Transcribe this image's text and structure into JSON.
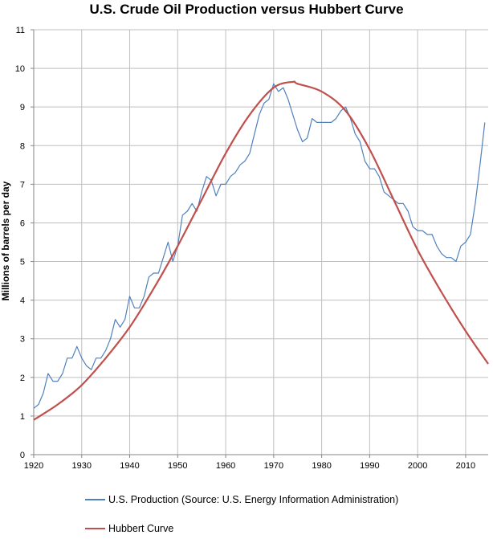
{
  "chart_data": {
    "type": "line",
    "title": "U.S. Crude Oil Production versus Hubbert Curve",
    "xlabel": "",
    "ylabel": "Millions of barrels per day",
    "xlim": [
      1920,
      2014.7
    ],
    "ylim": [
      0,
      11
    ],
    "x_ticks": [
      1920,
      1930,
      1940,
      1950,
      1960,
      1970,
      1980,
      1990,
      2000,
      2010
    ],
    "y_ticks": [
      0,
      1,
      2,
      3,
      4,
      5,
      6,
      7,
      8,
      9,
      10,
      11
    ],
    "grid": true,
    "legend_position": "bottom",
    "series": [
      {
        "name": "U.S. Production (Source: U.S. Energy Information Administration)",
        "color": "#4f81bd",
        "x": [
          1920,
          1921,
          1922,
          1923,
          1924,
          1925,
          1926,
          1927,
          1928,
          1929,
          1930,
          1931,
          1932,
          1933,
          1934,
          1935,
          1936,
          1937,
          1938,
          1939,
          1940,
          1941,
          1942,
          1943,
          1944,
          1945,
          1946,
          1947,
          1948,
          1949,
          1950,
          1951,
          1952,
          1953,
          1954,
          1955,
          1956,
          1957,
          1958,
          1959,
          1960,
          1961,
          1962,
          1963,
          1964,
          1965,
          1966,
          1967,
          1968,
          1969,
          1970,
          1971,
          1972,
          1973,
          1974,
          1975,
          1976,
          1977,
          1978,
          1979,
          1980,
          1981,
          1982,
          1983,
          1984,
          1985,
          1986,
          1987,
          1988,
          1989,
          1990,
          1991,
          1992,
          1993,
          1994,
          1995,
          1996,
          1997,
          1998,
          1999,
          2000,
          2001,
          2002,
          2003,
          2004,
          2005,
          2006,
          2007,
          2008,
          2009,
          2010,
          2011,
          2012,
          2013,
          2014
        ],
        "values": [
          1.2,
          1.3,
          1.6,
          2.1,
          1.9,
          1.9,
          2.1,
          2.5,
          2.5,
          2.8,
          2.5,
          2.3,
          2.2,
          2.5,
          2.5,
          2.7,
          3.0,
          3.5,
          3.3,
          3.5,
          4.1,
          3.8,
          3.8,
          4.1,
          4.6,
          4.7,
          4.7,
          5.1,
          5.5,
          5.0,
          5.4,
          6.2,
          6.3,
          6.5,
          6.3,
          6.8,
          7.2,
          7.1,
          6.7,
          7.0,
          7.0,
          7.2,
          7.3,
          7.5,
          7.6,
          7.8,
          8.3,
          8.8,
          9.1,
          9.2,
          9.6,
          9.4,
          9.5,
          9.2,
          8.8,
          8.4,
          8.1,
          8.2,
          8.7,
          8.6,
          8.6,
          8.6,
          8.6,
          8.7,
          8.9,
          9.0,
          8.7,
          8.3,
          8.1,
          7.6,
          7.4,
          7.4,
          7.2,
          6.8,
          6.7,
          6.6,
          6.5,
          6.5,
          6.3,
          5.9,
          5.8,
          5.8,
          5.7,
          5.7,
          5.4,
          5.2,
          5.1,
          5.1,
          5.0,
          5.4,
          5.5,
          5.7,
          6.5,
          7.5,
          8.6
        ]
      },
      {
        "name": "Hubbert Curve",
        "color": "#c0504d",
        "peak_year": 1974,
        "peak_value": 9.65,
        "x": [
          1920,
          1925,
          1930,
          1935,
          1940,
          1945,
          1950,
          1955,
          1960,
          1965,
          1970,
          1974,
          1975,
          1980,
          1985,
          1990,
          1995,
          2000,
          2005,
          2010,
          2014.7
        ],
        "values": [
          0.9,
          1.3,
          1.8,
          2.5,
          3.3,
          4.3,
          5.4,
          6.6,
          7.8,
          8.8,
          9.5,
          9.65,
          9.6,
          9.4,
          8.9,
          7.9,
          6.6,
          5.3,
          4.2,
          3.2,
          2.35
        ]
      }
    ]
  }
}
